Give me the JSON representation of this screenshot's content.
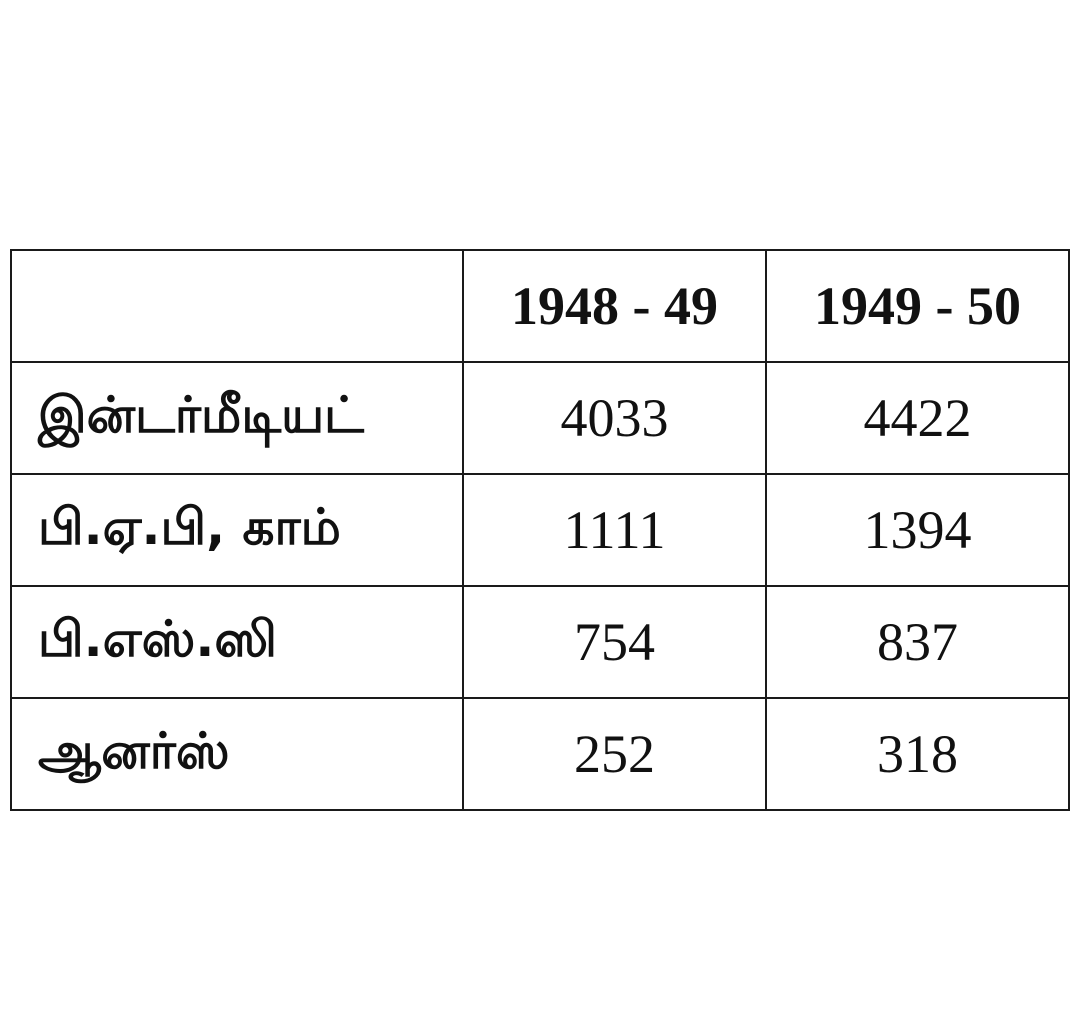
{
  "table": {
    "header": [
      "",
      "1948 - 49",
      "1949 - 50"
    ],
    "rows": [
      {
        "label": "இன்டர்மீடியட்",
        "values": [
          "4033",
          "4422"
        ]
      },
      {
        "label": "பி.ஏ.பி, காம்",
        "values": [
          "1111",
          "1394"
        ]
      },
      {
        "label": "பி.எஸ்.ஸி",
        "values": [
          "754",
          "837"
        ]
      },
      {
        "label": "ஆனர்ஸ்",
        "values": [
          "252",
          "318"
        ]
      }
    ]
  }
}
